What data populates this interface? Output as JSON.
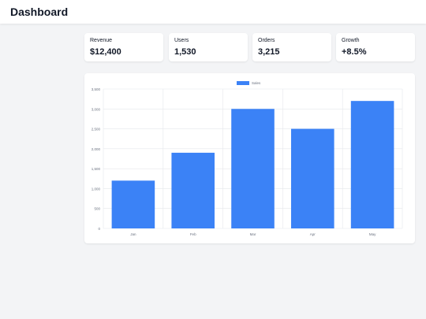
{
  "header": {
    "title": "Dashboard"
  },
  "cards": [
    {
      "label": "Revenue",
      "value": "$12,400"
    },
    {
      "label": "Users",
      "value": "1,530"
    },
    {
      "label": "Orders",
      "value": "3,215"
    },
    {
      "label": "Growth",
      "value": "+8.5%"
    }
  ],
  "colors": {
    "bar": "#3b82f6",
    "grid": "#e5e7eb",
    "text": "#6b7280"
  },
  "chart_data": {
    "type": "bar",
    "categories": [
      "Jan",
      "Feb",
      "Mar",
      "Apr",
      "May"
    ],
    "series": [
      {
        "name": "Sales",
        "values": [
          1200,
          1900,
          3000,
          2500,
          3200
        ]
      }
    ],
    "ylim": [
      0,
      3500
    ],
    "yticks": [
      "0",
      "500",
      "1,000",
      "1,500",
      "2,000",
      "2,500",
      "3,000",
      "3,500"
    ],
    "legend": "top-center",
    "grid": true
  }
}
